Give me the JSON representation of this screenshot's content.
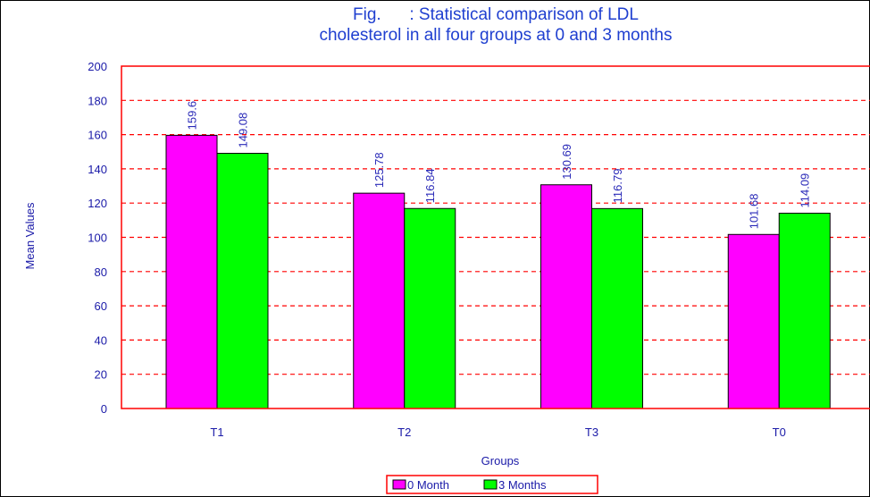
{
  "chart_data": {
    "type": "bar",
    "title_lines": [
      "Fig.      : Statistical comparison of LDL",
      "cholesterol in all four groups at 0 and 3 months"
    ],
    "xlabel": "Groups",
    "ylabel": "Mean Values",
    "categories": [
      "T1",
      "T2",
      "T3",
      "T0"
    ],
    "series": [
      {
        "name": "0 Month",
        "color": "#ff00ff",
        "values": [
          159.6,
          125.78,
          130.69,
          101.68
        ],
        "labels": [
          "159.6",
          "125.78",
          "130.69",
          "101.68"
        ]
      },
      {
        "name": "3 Months",
        "color": "#00ff00",
        "values": [
          149.08,
          116.84,
          116.79,
          114.09
        ],
        "labels": [
          "149.08",
          "116.84",
          "116.79",
          "114.09"
        ]
      }
    ],
    "ylim": [
      0,
      200
    ],
    "yticks": [
      "0",
      "20",
      "40",
      "60",
      "80",
      "100",
      "120",
      "140",
      "160",
      "180",
      "200"
    ],
    "grid": true,
    "grid_color": "#ff0000",
    "plot_border_color": "#ff0000",
    "text_color": "#1a1aa8",
    "legend_position": "bottom-center"
  }
}
